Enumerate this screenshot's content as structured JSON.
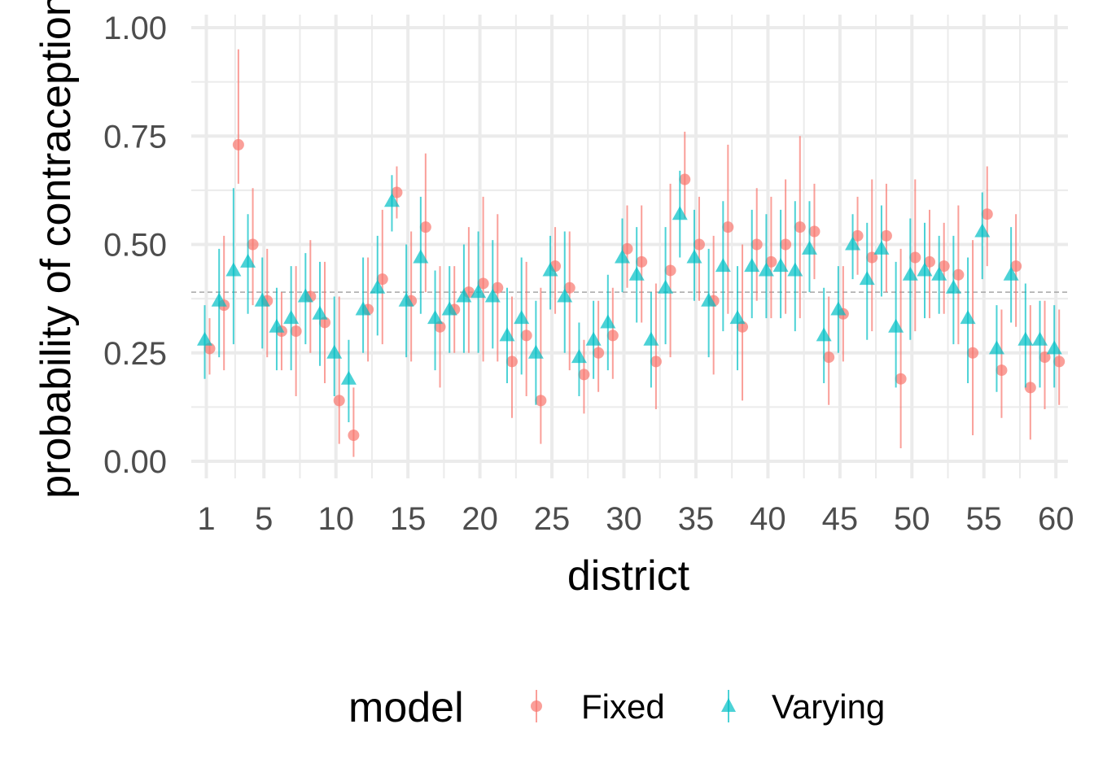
{
  "chart_data": {
    "type": "scatter",
    "xlabel": "district",
    "ylabel": "probability of contraception",
    "ylim": [
      0,
      1
    ],
    "xlim": [
      1,
      60
    ],
    "y_ticks": [
      "0.00",
      "0.25",
      "0.50",
      "0.75",
      "1.00"
    ],
    "x_ticks": [
      "1",
      "5",
      "10",
      "15",
      "20",
      "25",
      "30",
      "35",
      "40",
      "45",
      "50",
      "55",
      "60"
    ],
    "reference_line": 0.39,
    "grid": true,
    "legend": {
      "title": "model",
      "position": "bottom"
    },
    "series": [
      {
        "name": "Fixed",
        "color": "#F8766D",
        "marker": "circle",
        "x": [
          1,
          2,
          3,
          4,
          5,
          6,
          7,
          8,
          9,
          10,
          11,
          12,
          13,
          14,
          15,
          16,
          17,
          18,
          19,
          20,
          21,
          22,
          23,
          24,
          25,
          26,
          27,
          28,
          29,
          30,
          31,
          32,
          33,
          34,
          35,
          36,
          37,
          38,
          39,
          40,
          41,
          42,
          43,
          44,
          45,
          46,
          47,
          48,
          49,
          50,
          51,
          52,
          53,
          54,
          55,
          56,
          57,
          58,
          59,
          60
        ],
        "y": [
          0.26,
          0.36,
          0.73,
          0.5,
          0.37,
          0.3,
          0.3,
          0.38,
          0.32,
          0.14,
          0.06,
          0.35,
          0.42,
          0.62,
          0.37,
          0.54,
          0.31,
          0.35,
          0.39,
          0.41,
          0.4,
          0.23,
          0.29,
          0.14,
          0.45,
          0.4,
          0.2,
          0.25,
          0.29,
          0.49,
          0.46,
          0.23,
          0.44,
          0.65,
          0.5,
          0.37,
          0.54,
          0.31,
          0.5,
          0.46,
          0.5,
          0.54,
          0.53,
          0.24,
          0.34,
          0.52,
          0.47,
          0.52,
          0.19,
          0.47,
          0.46,
          0.45,
          0.43,
          0.25,
          0.57,
          0.21,
          0.45,
          0.17,
          0.24,
          0.23
        ],
        "lower": [
          0.2,
          0.21,
          0.64,
          0.36,
          0.24,
          0.21,
          0.15,
          0.25,
          0.18,
          0.04,
          0.01,
          0.23,
          0.27,
          0.56,
          0.23,
          0.39,
          0.17,
          0.25,
          0.25,
          0.23,
          0.23,
          0.1,
          0.15,
          0.04,
          0.34,
          0.21,
          0.11,
          0.16,
          0.19,
          0.4,
          0.32,
          0.12,
          0.24,
          0.56,
          0.37,
          0.2,
          0.34,
          0.14,
          0.37,
          0.33,
          0.34,
          0.33,
          0.42,
          0.13,
          0.23,
          0.43,
          0.3,
          0.39,
          0.03,
          0.3,
          0.33,
          0.34,
          0.27,
          0.06,
          0.45,
          0.1,
          0.31,
          0.05,
          0.12,
          0.13
        ],
        "upper": [
          0.33,
          0.52,
          0.95,
          0.63,
          0.49,
          0.39,
          0.45,
          0.51,
          0.46,
          0.38,
          0.17,
          0.47,
          0.58,
          0.68,
          0.53,
          0.71,
          0.45,
          0.45,
          0.54,
          0.61,
          0.57,
          0.38,
          0.46,
          0.4,
          0.54,
          0.53,
          0.28,
          0.37,
          0.4,
          0.59,
          0.59,
          0.41,
          0.64,
          0.76,
          0.61,
          0.52,
          0.73,
          0.5,
          0.63,
          0.61,
          0.65,
          0.75,
          0.64,
          0.38,
          0.45,
          0.61,
          0.65,
          0.64,
          0.49,
          0.65,
          0.58,
          0.55,
          0.59,
          0.51,
          0.68,
          0.35,
          0.57,
          0.36,
          0.37,
          0.35
        ]
      },
      {
        "name": "Varying",
        "color": "#00BFC4",
        "marker": "triangle",
        "x": [
          1,
          2,
          3,
          4,
          5,
          6,
          7,
          8,
          9,
          10,
          11,
          12,
          13,
          14,
          15,
          16,
          17,
          18,
          19,
          20,
          21,
          22,
          23,
          24,
          25,
          26,
          27,
          28,
          29,
          30,
          31,
          32,
          33,
          34,
          35,
          36,
          37,
          38,
          39,
          40,
          41,
          42,
          43,
          44,
          45,
          46,
          47,
          48,
          49,
          50,
          51,
          52,
          53,
          54,
          55,
          56,
          57,
          58,
          59,
          60
        ],
        "y": [
          0.28,
          0.37,
          0.44,
          0.46,
          0.37,
          0.31,
          0.33,
          0.38,
          0.34,
          0.25,
          0.19,
          0.35,
          0.4,
          0.6,
          0.37,
          0.47,
          0.33,
          0.35,
          0.38,
          0.39,
          0.38,
          0.29,
          0.33,
          0.25,
          0.44,
          0.38,
          0.24,
          0.28,
          0.32,
          0.47,
          0.43,
          0.28,
          0.4,
          0.57,
          0.47,
          0.37,
          0.45,
          0.33,
          0.45,
          0.44,
          0.45,
          0.44,
          0.49,
          0.29,
          0.35,
          0.5,
          0.42,
          0.49,
          0.31,
          0.43,
          0.44,
          0.43,
          0.4,
          0.33,
          0.53,
          0.26,
          0.43,
          0.28,
          0.28,
          0.26
        ],
        "lower": [
          0.19,
          0.24,
          0.27,
          0.34,
          0.26,
          0.21,
          0.21,
          0.27,
          0.22,
          0.15,
          0.09,
          0.25,
          0.29,
          0.53,
          0.24,
          0.34,
          0.21,
          0.25,
          0.25,
          0.25,
          0.26,
          0.18,
          0.2,
          0.13,
          0.35,
          0.25,
          0.15,
          0.19,
          0.21,
          0.39,
          0.32,
          0.17,
          0.27,
          0.47,
          0.37,
          0.24,
          0.3,
          0.21,
          0.33,
          0.33,
          0.33,
          0.3,
          0.39,
          0.18,
          0.25,
          0.42,
          0.28,
          0.38,
          0.17,
          0.28,
          0.33,
          0.34,
          0.27,
          0.18,
          0.42,
          0.16,
          0.32,
          0.17,
          0.17,
          0.17
        ],
        "upper": [
          0.36,
          0.49,
          0.63,
          0.57,
          0.47,
          0.4,
          0.45,
          0.48,
          0.46,
          0.38,
          0.28,
          0.47,
          0.52,
          0.66,
          0.5,
          0.61,
          0.44,
          0.45,
          0.5,
          0.53,
          0.51,
          0.4,
          0.47,
          0.37,
          0.52,
          0.53,
          0.32,
          0.37,
          0.43,
          0.56,
          0.54,
          0.39,
          0.54,
          0.67,
          0.58,
          0.49,
          0.6,
          0.45,
          0.58,
          0.57,
          0.58,
          0.6,
          0.6,
          0.4,
          0.45,
          0.57,
          0.55,
          0.59,
          0.46,
          0.56,
          0.55,
          0.52,
          0.52,
          0.47,
          0.62,
          0.36,
          0.54,
          0.41,
          0.37,
          0.36
        ]
      }
    ]
  }
}
